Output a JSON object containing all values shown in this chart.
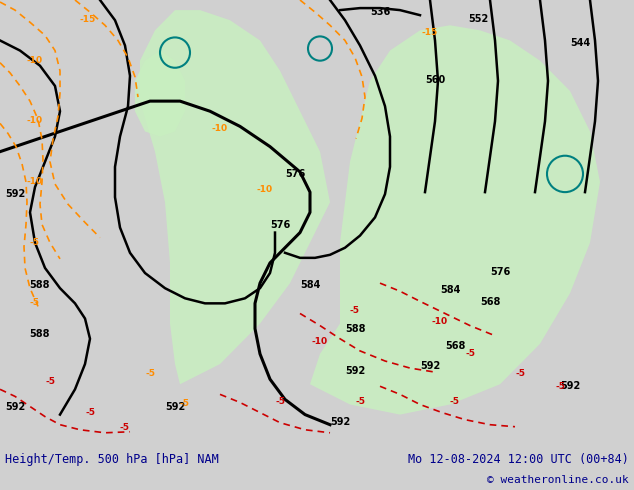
{
  "title_left": "Height/Temp. 500 hPa [hPa] NAM",
  "title_right": "Mo 12-08-2024 12:00 UTC (00+84)",
  "copyright": "© weatheronline.co.uk",
  "bg_color": "#d0d0d0",
  "map_bg": "#d8d8d8",
  "fig_width": 6.34,
  "fig_height": 4.9,
  "dpi": 100,
  "bottom_bar_color": "#ffffff",
  "title_color": "#00008B",
  "bottom_bar_height": 0.092
}
